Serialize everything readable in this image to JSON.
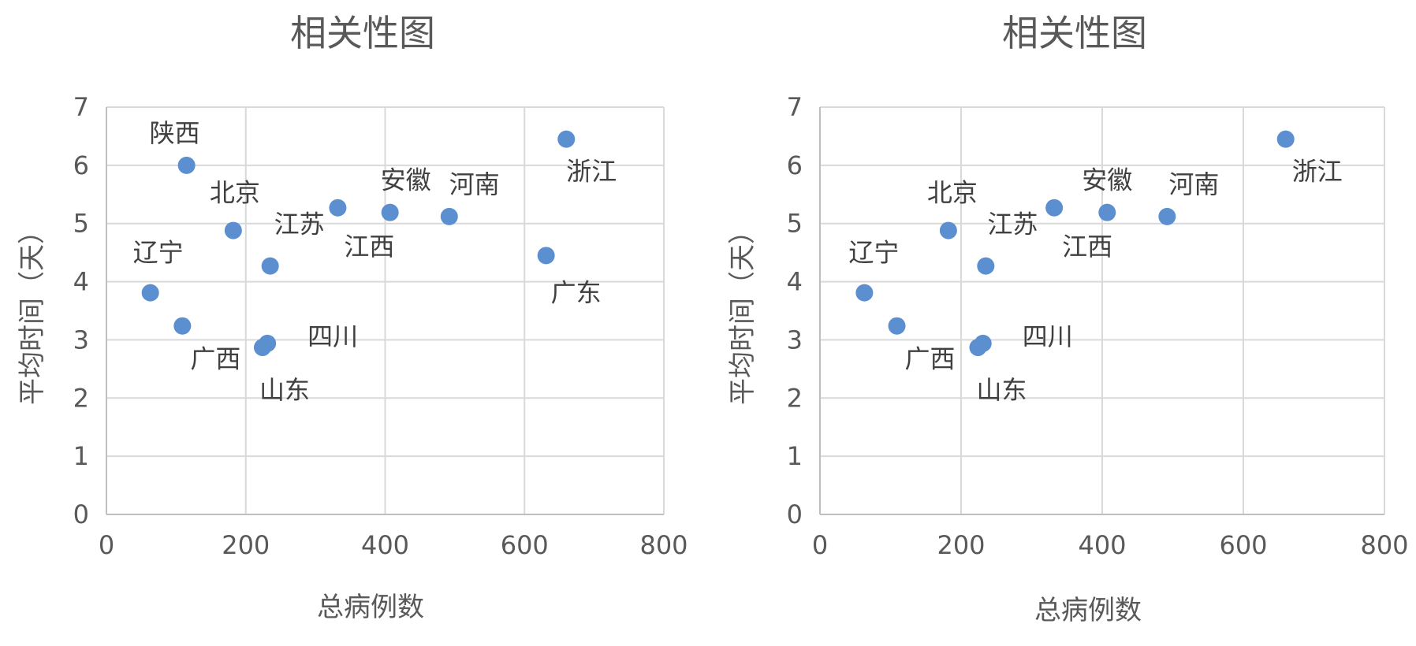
{
  "chart_data": [
    {
      "type": "scatter",
      "title": "相关性图",
      "xlabel": "总病例数",
      "ylabel": "平均时间（天）",
      "xlim": [
        0,
        800
      ],
      "ylim": [
        0,
        7
      ],
      "xticks": [
        "0",
        "200",
        "400",
        "600",
        "800"
      ],
      "yticks": [
        "0",
        "1",
        "2",
        "3",
        "4",
        "5",
        "6",
        "7"
      ],
      "grid": true,
      "color": "#5b8fd0",
      "points": [
        {
          "label": "陕西",
          "x": 115,
          "y": 6.0
        },
        {
          "label": "北京",
          "x": 182,
          "y": 4.88
        },
        {
          "label": "江苏",
          "x": 235,
          "y": 4.27
        },
        {
          "label": "辽宁",
          "x": 63,
          "y": 3.81
        },
        {
          "label": "广西",
          "x": 109,
          "y": 3.24
        },
        {
          "label": "四川",
          "x": 231,
          "y": 2.94
        },
        {
          "label": "山东",
          "x": 224,
          "y": 2.87
        },
        {
          "label": "江西",
          "x": 332,
          "y": 5.27
        },
        {
          "label": "安徽",
          "x": 407,
          "y": 5.19
        },
        {
          "label": "河南",
          "x": 492,
          "y": 5.12
        },
        {
          "label": "广东",
          "x": 631,
          "y": 4.45
        },
        {
          "label": "浙江",
          "x": 660,
          "y": 6.45
        }
      ]
    },
    {
      "type": "scatter",
      "title": "相关性图",
      "xlabel": "总病例数",
      "ylabel": "平均时间（天）",
      "xlim": [
        0,
        800
      ],
      "ylim": [
        0,
        7
      ],
      "xticks": [
        "0",
        "200",
        "400",
        "600",
        "800"
      ],
      "yticks": [
        "0",
        "1",
        "2",
        "3",
        "4",
        "5",
        "6",
        "7"
      ],
      "grid": true,
      "color": "#5b8fd0",
      "points": [
        {
          "label": "北京",
          "x": 182,
          "y": 4.88
        },
        {
          "label": "江苏",
          "x": 235,
          "y": 4.27
        },
        {
          "label": "辽宁",
          "x": 63,
          "y": 3.81
        },
        {
          "label": "广西",
          "x": 109,
          "y": 3.24
        },
        {
          "label": "四川",
          "x": 231,
          "y": 2.94
        },
        {
          "label": "山东",
          "x": 224,
          "y": 2.87
        },
        {
          "label": "江西",
          "x": 332,
          "y": 5.27
        },
        {
          "label": "安徽",
          "x": 407,
          "y": 5.19
        },
        {
          "label": "河南",
          "x": 492,
          "y": 5.12
        },
        {
          "label": "浙江",
          "x": 660,
          "y": 6.45
        }
      ]
    }
  ]
}
